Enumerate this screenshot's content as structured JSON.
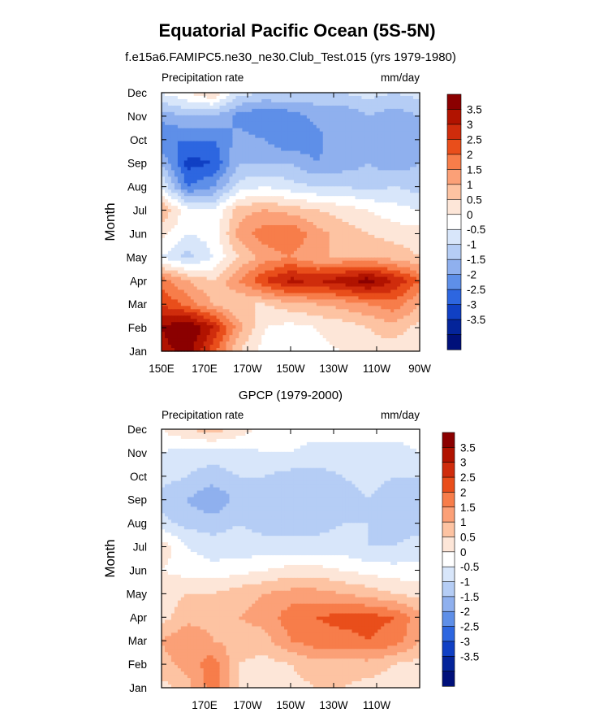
{
  "figure": {
    "title": "Equatorial Pacific Ocean (5S-5N)"
  },
  "chart_data": [
    {
      "type": "heatmap",
      "subtitle": "f.e15a6.FAMIPC5.ne30_ne30.Club_Test.015 (yrs 1979-1980)",
      "left_label": "Precipitation rate",
      "right_label": "mm/day",
      "ylabel": "Month",
      "x_ticks": [
        "150E",
        "170E",
        "170W",
        "150W",
        "130W",
        "110W",
        "90W"
      ],
      "y_ticks": [
        "Jan",
        "Feb",
        "Mar",
        "Apr",
        "May",
        "Jun",
        "Jul",
        "Aug",
        "Sep",
        "Oct",
        "Nov",
        "Dec"
      ],
      "colorbar_levels": [
        "3.5",
        "3",
        "2.5",
        "2",
        "1.5",
        "1",
        "0.5",
        "0",
        "-0.5",
        "-1",
        "-1.5",
        "-2",
        "-2.5",
        "-3",
        "-3.5"
      ],
      "colors": [
        "#8b0000",
        "#b11300",
        "#cf2c0c",
        "#e94e1b",
        "#f77d4a",
        "#fba077",
        "#fdc3a2",
        "#fde6d8",
        "#ffffff",
        "#d8e6fa",
        "#b5cdf5",
        "#8fb0ee",
        "#5e8fe8",
        "#2d66e0",
        "#1040c4",
        "#04249a",
        "#00107a"
      ],
      "x_range": [
        150,
        270
      ],
      "y_range": [
        1,
        12
      ],
      "grid": [
        [
          3.2,
          3.8,
          2.2,
          0.5,
          -0.2,
          -0.3,
          -0.1,
          0.0,
          0.3,
          0.2,
          0.0
        ],
        [
          3.5,
          4.2,
          3.0,
          1.2,
          0.0,
          -0.2,
          0.0,
          0.2,
          0.5,
          0.8,
          0.3
        ],
        [
          2.5,
          1.8,
          1.0,
          0.5,
          0.5,
          0.8,
          1.0,
          1.2,
          1.5,
          1.8,
          1.0
        ],
        [
          1.8,
          1.0,
          0.5,
          1.5,
          2.5,
          3.2,
          3.0,
          3.3,
          3.8,
          3.0,
          2.0
        ],
        [
          -0.5,
          -1.2,
          -0.5,
          0.5,
          1.2,
          1.5,
          1.0,
          1.0,
          1.0,
          0.8,
          0.5
        ],
        [
          0.2,
          -0.5,
          -0.3,
          1.2,
          1.8,
          2.0,
          1.2,
          0.8,
          0.5,
          0.3,
          0.2
        ],
        [
          1.0,
          -0.3,
          -0.5,
          0.8,
          1.0,
          0.8,
          0.5,
          0.3,
          0.0,
          -0.3,
          -0.5
        ],
        [
          -0.5,
          -2.5,
          -2.0,
          -0.8,
          -0.5,
          -0.8,
          -1.0,
          -1.0,
          -1.2,
          -1.0,
          -1.2
        ],
        [
          -1.5,
          -3.2,
          -3.0,
          -1.5,
          -1.5,
          -1.5,
          -2.0,
          -1.8,
          -1.5,
          -1.8,
          -1.5
        ],
        [
          -2.5,
          -2.5,
          -2.5,
          -1.8,
          -2.0,
          -2.5,
          -2.2,
          -1.5,
          -1.5,
          -1.8,
          -1.8
        ],
        [
          -1.8,
          -1.5,
          -1.5,
          -2.2,
          -2.5,
          -2.3,
          -1.8,
          -2.0,
          -1.5,
          -1.8,
          -1.5
        ],
        [
          -0.5,
          0.0,
          0.5,
          -0.8,
          -1.0,
          -1.0,
          -1.2,
          -1.0,
          -0.8,
          -1.0,
          -0.8
        ]
      ]
    },
    {
      "type": "heatmap",
      "subtitle": "GPCP (1979-2000)",
      "left_label": "Precipitation rate",
      "right_label": "mm/day",
      "ylabel": "Month",
      "x_ticks": [
        "170E",
        "170W",
        "150W",
        "130W",
        "110W"
      ],
      "y_ticks": [
        "Jan",
        "Feb",
        "Mar",
        "Apr",
        "May",
        "Jun",
        "Jul",
        "Aug",
        "Sep",
        "Oct",
        "Nov",
        "Dec"
      ],
      "colorbar_levels": [
        "3.5",
        "3",
        "2.5",
        "2",
        "1.5",
        "1",
        "0.5",
        "0",
        "-0.5",
        "-1",
        "-1.5",
        "-2",
        "-2.5",
        "-3",
        "-3.5"
      ],
      "colors": [
        "#8b0000",
        "#b11300",
        "#cf2c0c",
        "#e94e1b",
        "#f77d4a",
        "#fba077",
        "#fdc3a2",
        "#fde6d8",
        "#ffffff",
        "#d8e6fa",
        "#b5cdf5",
        "#8fb0ee",
        "#5e8fe8",
        "#2d66e0",
        "#1040c4",
        "#04249a",
        "#00107a"
      ],
      "x_range": [
        150,
        270
      ],
      "y_range": [
        1,
        12
      ],
      "grid": [
        [
          0.3,
          0.8,
          1.8,
          0.5,
          0.2,
          0.3,
          0.5,
          0.5,
          0.3,
          0.2,
          0.0
        ],
        [
          0.8,
          1.2,
          1.8,
          0.5,
          0.3,
          0.5,
          0.8,
          0.8,
          0.8,
          0.5,
          0.3
        ],
        [
          1.0,
          1.5,
          1.0,
          0.8,
          0.8,
          1.5,
          1.8,
          1.8,
          2.0,
          1.8,
          1.0
        ],
        [
          0.3,
          0.8,
          0.8,
          1.0,
          1.2,
          1.8,
          2.0,
          2.2,
          2.2,
          2.0,
          1.2
        ],
        [
          0.3,
          0.5,
          0.5,
          0.8,
          1.0,
          1.2,
          1.2,
          1.0,
          0.8,
          0.5,
          0.3
        ],
        [
          0.0,
          -0.2,
          -0.3,
          -0.2,
          0.0,
          0.2,
          0.2,
          0.0,
          -0.2,
          -0.3,
          -0.3
        ],
        [
          0.3,
          -0.5,
          -0.8,
          -0.8,
          -0.8,
          -0.8,
          -0.8,
          -0.8,
          -1.0,
          -1.0,
          -0.8
        ],
        [
          -0.8,
          -1.2,
          -1.2,
          -1.0,
          -1.2,
          -1.3,
          -1.2,
          -1.0,
          -1.0,
          -1.2,
          -1.2
        ],
        [
          -1.2,
          -1.5,
          -2.0,
          -1.3,
          -1.2,
          -1.5,
          -1.5,
          -1.3,
          -1.0,
          -1.3,
          -1.5
        ],
        [
          -0.8,
          -1.0,
          -1.2,
          -1.0,
          -1.0,
          -1.2,
          -1.2,
          -1.0,
          -0.8,
          -1.0,
          -1.0
        ],
        [
          -0.5,
          -0.8,
          -0.8,
          -0.7,
          -0.5,
          -0.5,
          -0.7,
          -0.7,
          -0.7,
          -0.7,
          -0.5
        ],
        [
          0.0,
          0.5,
          0.8,
          0.3,
          -0.2,
          -0.3,
          -0.3,
          -0.3,
          -0.3,
          -0.3,
          -0.3
        ]
      ]
    }
  ]
}
